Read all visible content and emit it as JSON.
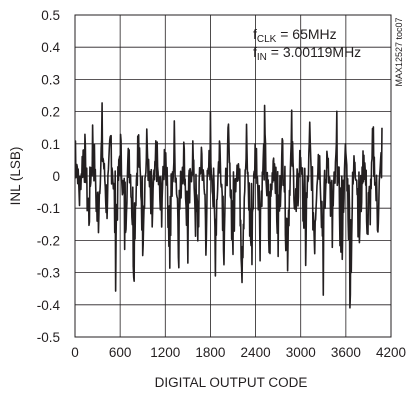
{
  "chart_data": {
    "type": "line",
    "title": "",
    "xlabel": "DIGITAL OUTPUT CODE",
    "ylabel": "INL (LSB)",
    "xlim": [
      0,
      4200
    ],
    "ylim": [
      -0.5,
      0.5
    ],
    "x_ticks": [
      0,
      600,
      1200,
      1800,
      2400,
      3000,
      3600,
      4200
    ],
    "x_tick_labels": [
      "0",
      "600",
      "1200",
      "1800",
      "2400",
      "3000",
      "3600",
      "4200"
    ],
    "y_ticks": [
      -0.5,
      -0.4,
      -0.3,
      -0.2,
      -0.1,
      0,
      0.1,
      0.2,
      0.3,
      0.4,
      0.5
    ],
    "y_tick_labels": [
      "-0.5",
      "-0.4",
      "-0.3",
      "-0.2",
      "-0.1",
      "0",
      "0.1",
      "0.2",
      "0.3",
      "0.4",
      "0.5"
    ],
    "grid": true,
    "annotations": {
      "fclk": {
        "main": "f",
        "sub": "CLK",
        "rest": " = 65MHz"
      },
      "fin": {
        "main": "f",
        "sub": "IN",
        "rest": " = 3.00119MHz"
      }
    },
    "figure_id": "MAX12527 toc07",
    "series": [
      {
        "x": [
          0,
          60,
          120,
          180,
          240,
          300,
          360,
          420,
          480,
          540,
          600,
          660,
          720,
          780,
          840,
          900,
          960,
          1020,
          1080,
          1140,
          1200,
          1260,
          1320,
          1380,
          1440,
          1500,
          1560,
          1620,
          1680,
          1740,
          1800,
          1860,
          1920,
          1980,
          2040,
          2100,
          2160,
          2220,
          2280,
          2340,
          2400,
          2460,
          2520,
          2580,
          2640,
          2700,
          2760,
          2820,
          2880,
          2940,
          3000,
          3060,
          3120,
          3180,
          3240,
          3300,
          3360,
          3420,
          3480,
          3540,
          3600,
          3660,
          3720,
          3780,
          3840,
          3900,
          3960,
          4020,
          4080
        ],
        "y": [
          0.2,
          -0.1,
          0.18,
          -0.22,
          0.21,
          -0.25,
          0.19,
          -0.15,
          0.2,
          -0.3,
          0.17,
          -0.25,
          0.15,
          -0.32,
          0.18,
          -0.22,
          0.16,
          -0.28,
          0.14,
          -0.2,
          0.17,
          -0.32,
          0.15,
          -0.25,
          0.16,
          -0.3,
          0.17,
          -0.33,
          0.14,
          -0.22,
          0.18,
          -0.32,
          0.16,
          -0.25,
          0.15,
          -0.3,
          0.17,
          -0.33,
          0.14,
          -0.36,
          0.16,
          -0.22,
          0.18,
          -0.34,
          0.15,
          -0.28,
          0.14,
          -0.33,
          0.17,
          -0.25,
          0.15,
          -0.35,
          0.16,
          -0.28,
          0.17,
          -0.34,
          0.15,
          -0.3,
          0.16,
          -0.33,
          0.14,
          -0.4,
          0.17,
          -0.28,
          0.15,
          -0.32,
          0.16,
          -0.2,
          0.15
        ]
      }
    ]
  }
}
